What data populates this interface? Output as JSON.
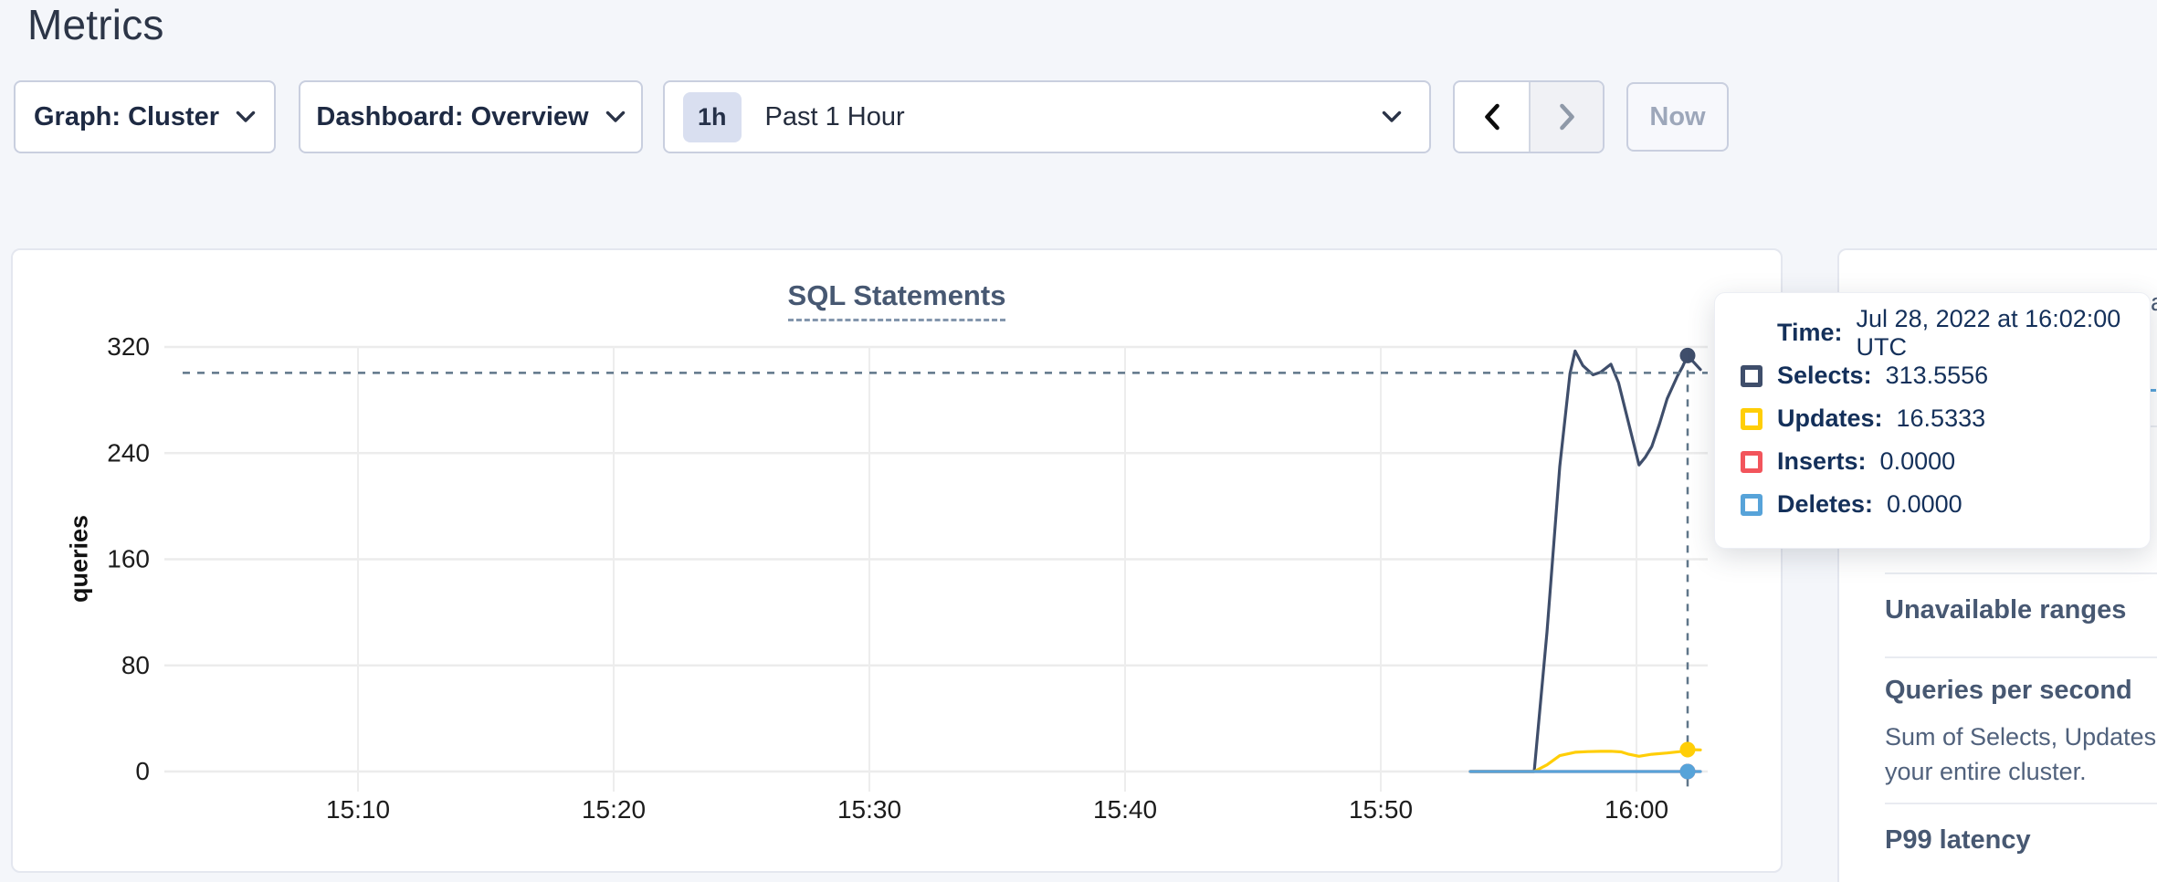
{
  "page": {
    "title": "Metrics"
  },
  "toolbar": {
    "graph_select": {
      "label": "Graph: Cluster"
    },
    "dashboard_select": {
      "label": "Dashboard: Overview"
    },
    "time_range": {
      "badge": "1h",
      "label": "Past 1 Hour"
    },
    "prev_label": "previous time window",
    "next_label": "next time window",
    "now_button": "Now"
  },
  "chart_data": {
    "type": "line",
    "title": "SQL Statements",
    "ylabel": "queries",
    "ylim": [
      0,
      320
    ],
    "grid": true,
    "y_ticks": [
      320,
      240,
      160,
      80,
      0
    ],
    "x_ticks": [
      {
        "label": "15:10",
        "min": 10
      },
      {
        "label": "15:20",
        "min": 20
      },
      {
        "label": "15:30",
        "min": 30
      },
      {
        "label": "15:40",
        "min": 40
      },
      {
        "label": "15:50",
        "min": 50
      },
      {
        "label": "16:00",
        "min": 60
      }
    ],
    "x_window_minutes": [
      2,
      62.5
    ],
    "series": [
      {
        "name": "Selects",
        "color": "#3f4e6b",
        "points": [
          [
            53.5,
            0
          ],
          [
            54,
            0
          ],
          [
            54.5,
            0
          ],
          [
            55,
            0
          ],
          [
            55.5,
            0
          ],
          [
            56,
            0
          ],
          [
            56.5,
            105
          ],
          [
            57,
            230
          ],
          [
            57.4,
            300
          ],
          [
            57.6,
            317
          ],
          [
            57.9,
            306
          ],
          [
            58.3,
            299
          ],
          [
            58.6,
            301
          ],
          [
            59.0,
            307
          ],
          [
            59.3,
            293
          ],
          [
            59.7,
            262
          ],
          [
            60.1,
            231
          ],
          [
            60.35,
            237
          ],
          [
            60.6,
            245
          ],
          [
            60.9,
            262
          ],
          [
            61.2,
            281
          ],
          [
            61.6,
            298
          ],
          [
            61.8,
            305
          ],
          [
            62.0,
            313.5556
          ],
          [
            62.5,
            303
          ]
        ]
      },
      {
        "name": "Updates",
        "color": "#ffce07",
        "points": [
          [
            53.5,
            0
          ],
          [
            54.5,
            0
          ],
          [
            55.5,
            0
          ],
          [
            56,
            0
          ],
          [
            56.5,
            5
          ],
          [
            57,
            12
          ],
          [
            57.6,
            14.5
          ],
          [
            58.1,
            15
          ],
          [
            58.6,
            15.2
          ],
          [
            59.0,
            15.3
          ],
          [
            59.4,
            14.8
          ],
          [
            59.7,
            13
          ],
          [
            60.1,
            11.5
          ],
          [
            60.6,
            13
          ],
          [
            61.2,
            14
          ],
          [
            61.7,
            15
          ],
          [
            62.0,
            16.5333
          ],
          [
            62.5,
            16.3
          ]
        ]
      },
      {
        "name": "Inserts",
        "color": "#f2555c",
        "points": [
          [
            53.5,
            0
          ],
          [
            58,
            0
          ],
          [
            62.0,
            0
          ],
          [
            62.5,
            0
          ]
        ]
      },
      {
        "name": "Deletes",
        "color": "#57a3d9",
        "points": [
          [
            53.5,
            0
          ],
          [
            58,
            0
          ],
          [
            62.0,
            0
          ],
          [
            62.5,
            0
          ]
        ]
      }
    ],
    "hover": {
      "t": 62.0,
      "time_label": "Jul 28, 2022 at 16:02:00 UTC"
    }
  },
  "tooltip": {
    "time_label": "Time:",
    "time_value": "Jul 28, 2022 at 16:02:00 UTC",
    "rows": [
      {
        "label": "Selects:",
        "value": "313.5556",
        "color": "#3f4e6b"
      },
      {
        "label": "Updates:",
        "value": "16.5333",
        "color": "#ffce07"
      },
      {
        "label": "Inserts:",
        "value": "0.0000",
        "color": "#f2555c"
      },
      {
        "label": "Deletes:",
        "value": "0.0000",
        "color": "#57a3d9"
      }
    ]
  },
  "sidebar": {
    "clipped_fragment": "a",
    "sections": [
      {
        "heading": "Unavailable ranges"
      },
      {
        "heading": "Queries per second",
        "description_lines": [
          "Sum of Selects, Updates, Inser",
          "your entire cluster."
        ]
      },
      {
        "heading": "P99 latency"
      }
    ]
  },
  "colors": {
    "selects": "#3f4e6b",
    "updates": "#ffce07",
    "inserts": "#f2555c",
    "deletes": "#57a3d9",
    "crosshair": "#5f7689",
    "page_background": "#f4f6fa",
    "heading_text": "#2c3547",
    "section_heading_text": "#475872"
  }
}
